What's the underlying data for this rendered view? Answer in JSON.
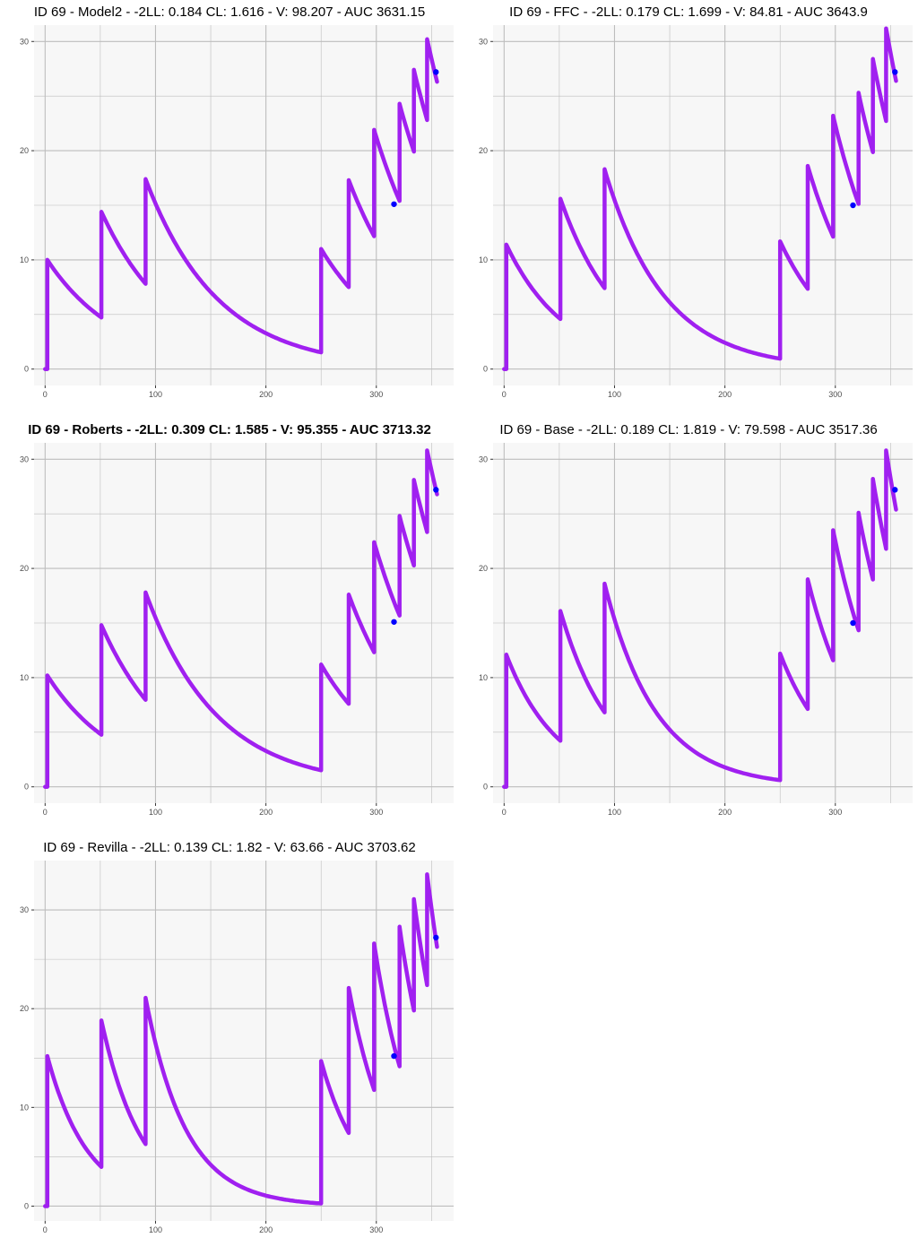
{
  "colors": {
    "background": "#ffffff",
    "panel_background": "#f7f7f7",
    "grid": "#bdbdbd",
    "prediction_line": "#a020f0",
    "observation_point": "#0000ff",
    "tick_text": "#4d4d4d"
  },
  "chart_data": [
    {
      "type": "line",
      "title": "ID 69 - Model2 - -2LL: 0.184 CL: 1.616 - V: 98.207 - AUC 3631.15",
      "title_bold": false,
      "xlim": [
        -10,
        370
      ],
      "ylim": [
        -1.5,
        31.5
      ],
      "xticks": [
        0,
        100,
        200,
        300
      ],
      "yticks": [
        0,
        10,
        20,
        30
      ],
      "xtick_labels": [
        "0",
        "100",
        "200",
        "300"
      ],
      "ytick_labels": [
        "0",
        "10",
        "20",
        "30"
      ],
      "doses": [
        {
          "t": 2,
          "peak": 10.0
        },
        {
          "t": 51,
          "peak": 14.4
        },
        {
          "t": 91,
          "peak": 17.4
        },
        {
          "t": 250,
          "peak": 11.0
        },
        {
          "t": 275,
          "peak": 17.3
        },
        {
          "t": 298,
          "peak": 21.9
        },
        {
          "t": 321,
          "peak": 24.3
        },
        {
          "t": 334,
          "peak": 27.4
        },
        {
          "t": 346,
          "peak": 30.2
        }
      ],
      "k": 0.0153,
      "t_end": 355,
      "observations": [
        {
          "x": 316,
          "y": 15.1
        },
        {
          "x": 354,
          "y": 27.2
        }
      ]
    },
    {
      "type": "line",
      "title": "ID 69 - FFC - -2LL: 0.179 CL: 1.699 - V: 84.81 - AUC 3643.9",
      "title_bold": false,
      "xlim": [
        -10,
        370
      ],
      "ylim": [
        -1.5,
        31.5
      ],
      "xticks": [
        0,
        100,
        200,
        300
      ],
      "yticks": [
        0,
        10,
        20,
        30
      ],
      "xtick_labels": [
        "0",
        "100",
        "200",
        "300"
      ],
      "ytick_labels": [
        "0",
        "10",
        "20",
        "30"
      ],
      "doses": [
        {
          "t": 2,
          "peak": 11.4
        },
        {
          "t": 51,
          "peak": 15.6
        },
        {
          "t": 91,
          "peak": 18.3
        },
        {
          "t": 250,
          "peak": 11.7
        },
        {
          "t": 275,
          "peak": 18.6
        },
        {
          "t": 298,
          "peak": 23.2
        },
        {
          "t": 321,
          "peak": 25.3
        },
        {
          "t": 334,
          "peak": 28.4
        },
        {
          "t": 346,
          "peak": 31.2
        }
      ],
      "k": 0.0186,
      "t_end": 355,
      "observations": [
        {
          "x": 316,
          "y": 15.0
        },
        {
          "x": 354,
          "y": 27.2
        }
      ]
    },
    {
      "type": "line",
      "title": "ID 69 - Roberts - -2LL: 0.309 CL: 1.585 - V: 95.355 - AUC 3713.32",
      "title_bold": true,
      "xlim": [
        -10,
        370
      ],
      "ylim": [
        -1.5,
        31.5
      ],
      "xticks": [
        0,
        100,
        200,
        300
      ],
      "yticks": [
        0,
        10,
        20,
        30
      ],
      "xtick_labels": [
        "0",
        "100",
        "200",
        "300"
      ],
      "ytick_labels": [
        "0",
        "10",
        "20",
        "30"
      ],
      "doses": [
        {
          "t": 2,
          "peak": 10.2
        },
        {
          "t": 51,
          "peak": 14.8
        },
        {
          "t": 91,
          "peak": 17.8
        },
        {
          "t": 250,
          "peak": 11.2
        },
        {
          "t": 275,
          "peak": 17.6
        },
        {
          "t": 298,
          "peak": 22.4
        },
        {
          "t": 321,
          "peak": 24.8
        },
        {
          "t": 334,
          "peak": 28.1
        },
        {
          "t": 346,
          "peak": 30.8
        }
      ],
      "k": 0.0155,
      "t_end": 355,
      "observations": [
        {
          "x": 316,
          "y": 15.1
        },
        {
          "x": 354,
          "y": 27.2
        }
      ]
    },
    {
      "type": "line",
      "title": "ID 69 - Base - -2LL: 0.189 CL: 1.819 - V: 79.598 - AUC 3517.36",
      "title_bold": false,
      "xlim": [
        -10,
        370
      ],
      "ylim": [
        -1.5,
        31.5
      ],
      "xticks": [
        0,
        100,
        200,
        300
      ],
      "yticks": [
        0,
        10,
        20,
        30
      ],
      "xtick_labels": [
        "0",
        "100",
        "200",
        "300"
      ],
      "ytick_labels": [
        "0",
        "10",
        "20",
        "30"
      ],
      "doses": [
        {
          "t": 2,
          "peak": 12.1
        },
        {
          "t": 51,
          "peak": 16.1
        },
        {
          "t": 91,
          "peak": 18.6
        },
        {
          "t": 250,
          "peak": 12.2
        },
        {
          "t": 275,
          "peak": 19.0
        },
        {
          "t": 298,
          "peak": 23.5
        },
        {
          "t": 321,
          "peak": 25.1
        },
        {
          "t": 334,
          "peak": 28.2
        },
        {
          "t": 346,
          "peak": 30.8
        }
      ],
      "k": 0.0215,
      "t_end": 355,
      "observations": [
        {
          "x": 316,
          "y": 15.0
        },
        {
          "x": 354,
          "y": 27.2
        }
      ]
    },
    {
      "type": "line",
      "title": "ID 69 - Revilla - -2LL: 0.139 CL: 1.82 - V: 63.66 - AUC 3703.62",
      "title_bold": false,
      "xlim": [
        -10,
        370
      ],
      "ylim": [
        -1.5,
        35
      ],
      "xticks": [
        0,
        100,
        200,
        300
      ],
      "yticks": [
        0,
        10,
        20,
        30
      ],
      "xtick_labels": [
        "0",
        "100",
        "200",
        "300"
      ],
      "ytick_labels": [
        "0",
        "10",
        "20",
        "30"
      ],
      "doses": [
        {
          "t": 2,
          "peak": 15.2
        },
        {
          "t": 51,
          "peak": 18.8
        },
        {
          "t": 91,
          "peak": 21.1
        },
        {
          "t": 250,
          "peak": 14.7
        },
        {
          "t": 275,
          "peak": 22.1
        },
        {
          "t": 298,
          "peak": 26.6
        },
        {
          "t": 321,
          "peak": 28.3
        },
        {
          "t": 334,
          "peak": 31.1
        },
        {
          "t": 346,
          "peak": 33.6
        }
      ],
      "k": 0.0274,
      "t_end": 355,
      "observations": [
        {
          "x": 316,
          "y": 15.2
        },
        {
          "x": 354,
          "y": 27.2
        }
      ]
    }
  ]
}
